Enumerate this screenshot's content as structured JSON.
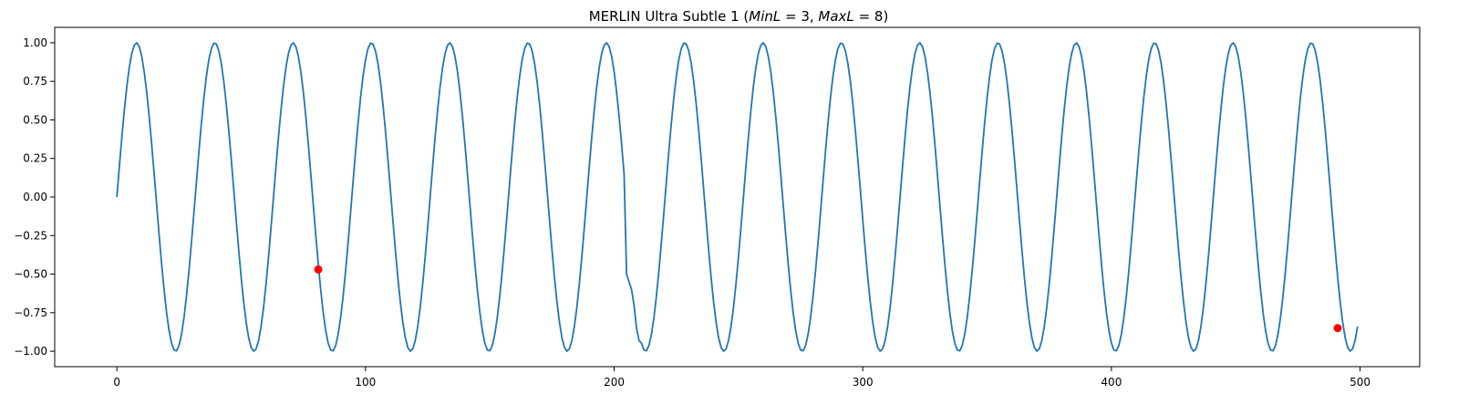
{
  "chart_data": {
    "type": "line",
    "title": "MERLIN Ultra Subtle 1 ",
    "title_math": {
      "open": "(",
      "minl_var": "MinL",
      "minl_val": " = 3, ",
      "maxl_var": "MaxL",
      "maxl_val": " = 8)"
    },
    "xlabel": "",
    "ylabel": "",
    "xlim": [
      -25,
      524
    ],
    "ylim": [
      -1.1,
      1.1
    ],
    "x_ticks": [
      0,
      100,
      200,
      300,
      400,
      500
    ],
    "x_tick_labels": [
      "0",
      "100",
      "200",
      "300",
      "400",
      "500"
    ],
    "y_ticks": [
      1.0,
      0.75,
      0.5,
      0.25,
      0.0,
      -0.25,
      -0.5,
      -0.75,
      -1.0
    ],
    "y_tick_labels": [
      "1.00",
      "0.75",
      "0.50",
      "0.25",
      "0.00",
      "−0.25",
      "−0.50",
      "−0.75",
      "−1.00"
    ],
    "grid": false,
    "series": [
      {
        "kind": "line",
        "color": "#1f77b4",
        "x_start": 0,
        "x_end": 499,
        "function": "sin(2*pi*x/31.5)",
        "period": 31.5,
        "amplitude": 1.0,
        "anomaly": {
          "x_start": 205,
          "x_end": 210,
          "values": [
            -0.5,
            -0.55,
            -0.6,
            -0.7,
            -0.85,
            -0.93
          ]
        }
      },
      {
        "kind": "scatter",
        "color": "#ff0000",
        "points": [
          {
            "x": 81,
            "y": -0.47
          },
          {
            "x": 491,
            "y": -0.85
          }
        ]
      }
    ]
  }
}
